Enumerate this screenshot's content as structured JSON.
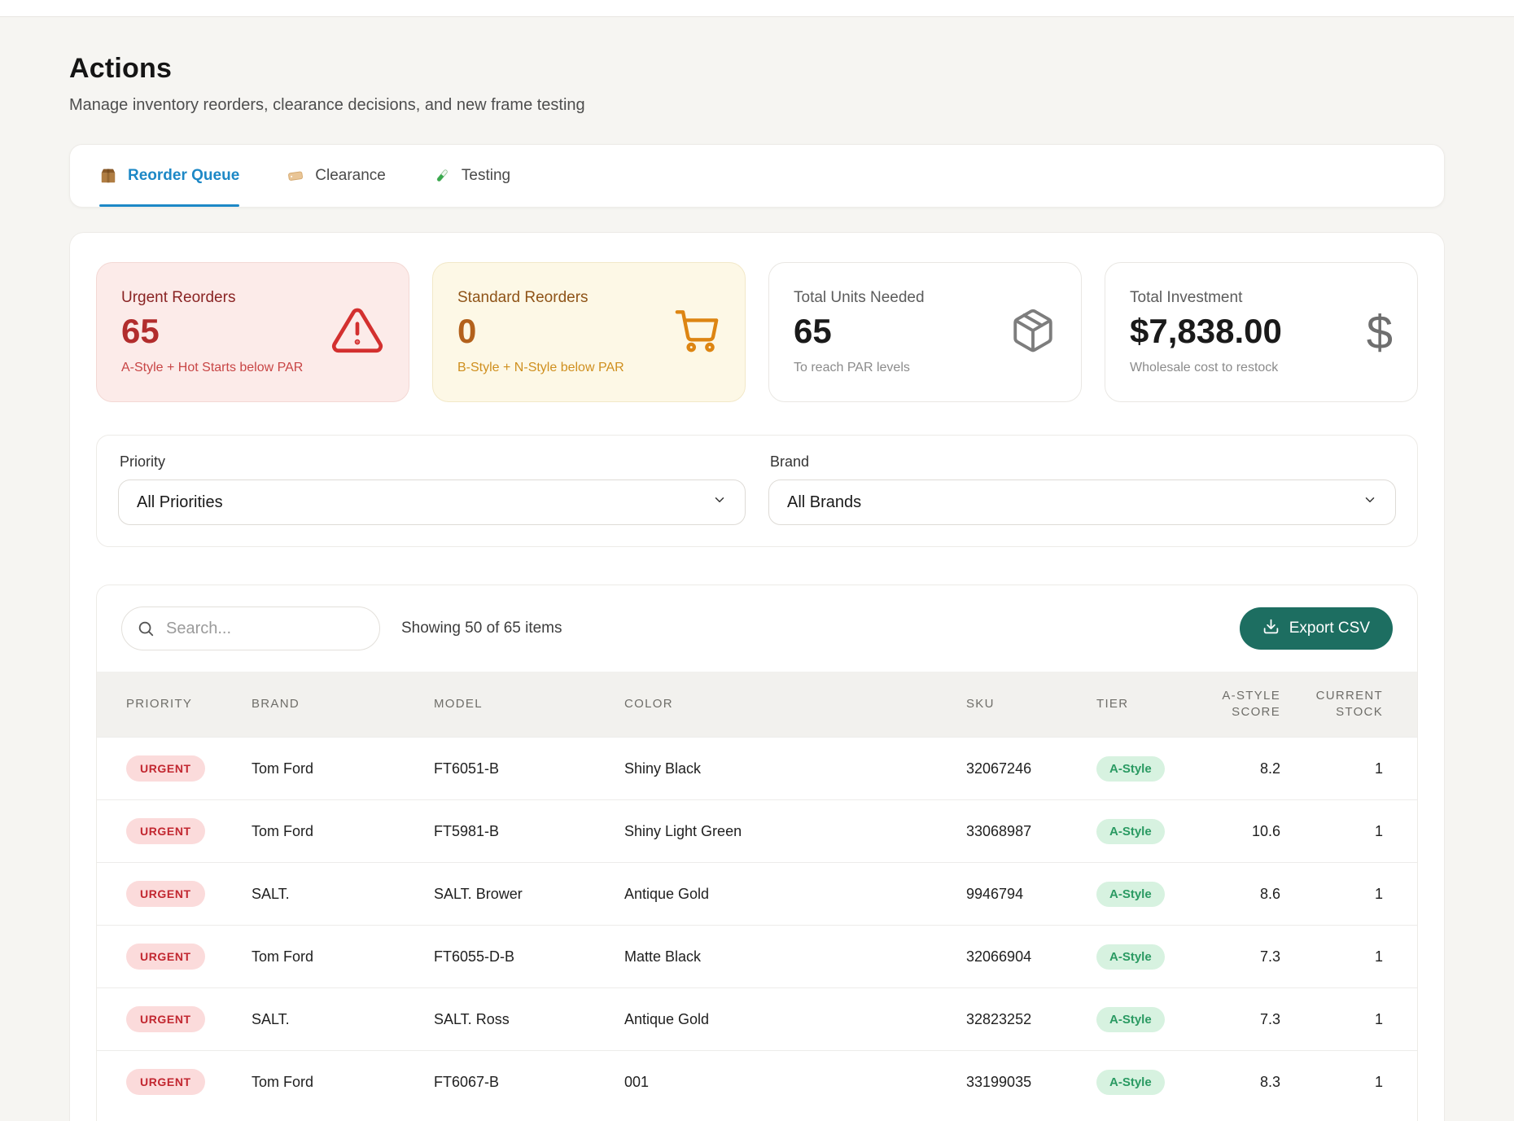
{
  "page": {
    "title": "Actions",
    "subtitle": "Manage inventory reorders, clearance decisions, and new frame testing"
  },
  "tabs": [
    {
      "label": "Reorder Queue",
      "icon": "package-icon",
      "active": true
    },
    {
      "label": "Clearance",
      "icon": "tag-icon",
      "active": false
    },
    {
      "label": "Testing",
      "icon": "test-tube-icon",
      "active": false
    }
  ],
  "stats": [
    {
      "title": "Urgent Reorders",
      "value": "65",
      "subtitle": "A-Style + Hot Starts below PAR",
      "icon": "warning-icon"
    },
    {
      "title": "Standard Reorders",
      "value": "0",
      "subtitle": "B-Style + N-Style below PAR",
      "icon": "cart-icon"
    },
    {
      "title": "Total Units Needed",
      "value": "65",
      "subtitle": "To reach PAR levels",
      "icon": "box-icon"
    },
    {
      "title": "Total Investment",
      "value": "$7,838.00",
      "subtitle": "Wholesale cost to restock",
      "icon": "dollar-icon"
    }
  ],
  "filters": {
    "priority": {
      "label": "Priority",
      "value": "All Priorities"
    },
    "brand": {
      "label": "Brand",
      "value": "All Brands"
    }
  },
  "toolbar": {
    "search_placeholder": "Search...",
    "showing_text": "Showing 50 of 65 items",
    "export_label": "Export CSV"
  },
  "table": {
    "columns": [
      "PRIORITY",
      "BRAND",
      "MODEL",
      "COLOR",
      "SKU",
      "TIER",
      "A-STYLE SCORE",
      "CURRENT STOCK"
    ],
    "rows": [
      {
        "priority": "URGENT",
        "brand": "Tom Ford",
        "model": "FT6051-B",
        "color": "Shiny Black",
        "sku": "32067246",
        "tier": "A-Style",
        "score": "8.2",
        "stock": "1"
      },
      {
        "priority": "URGENT",
        "brand": "Tom Ford",
        "model": "FT5981-B",
        "color": "Shiny Light Green",
        "sku": "33068987",
        "tier": "A-Style",
        "score": "10.6",
        "stock": "1"
      },
      {
        "priority": "URGENT",
        "brand": "SALT.",
        "model": "SALT. Brower",
        "color": "Antique Gold",
        "sku": "9946794",
        "tier": "A-Style",
        "score": "8.6",
        "stock": "1"
      },
      {
        "priority": "URGENT",
        "brand": "Tom Ford",
        "model": "FT6055-D-B",
        "color": "Matte Black",
        "sku": "32066904",
        "tier": "A-Style",
        "score": "7.3",
        "stock": "1"
      },
      {
        "priority": "URGENT",
        "brand": "SALT.",
        "model": "SALT. Ross",
        "color": "Antique Gold",
        "sku": "32823252",
        "tier": "A-Style",
        "score": "7.3",
        "stock": "1"
      },
      {
        "priority": "URGENT",
        "brand": "Tom Ford",
        "model": "FT6067-B",
        "color": "001",
        "sku": "33199035",
        "tier": "A-Style",
        "score": "8.3",
        "stock": "1"
      }
    ]
  },
  "colors": {
    "accent_blue": "#1d88c6",
    "teal_button": "#1d6e61",
    "urgent_red": "#c22730",
    "urgent_bg": "#fcebe9",
    "standard_orange": "#b3611c",
    "standard_bg": "#fdf8e6",
    "tier_green": "#2a9a62",
    "tier_bg": "#d7f2e0",
    "page_bg": "#f6f5f2"
  }
}
